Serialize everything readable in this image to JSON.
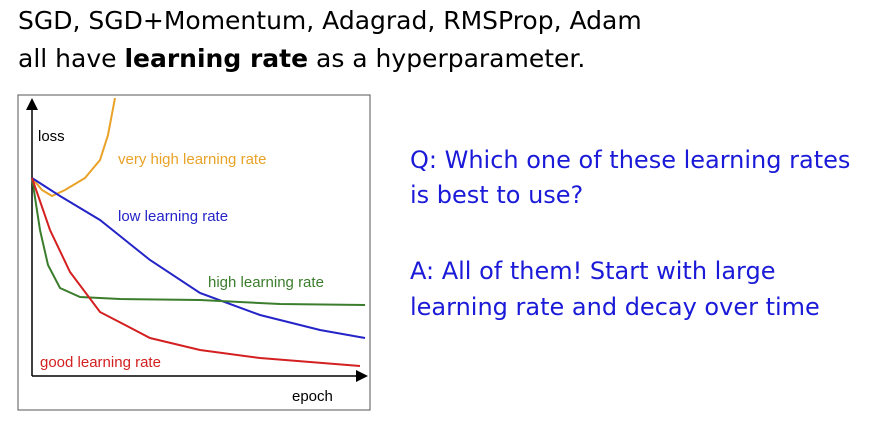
{
  "heading": {
    "line1": "SGD, SGD+Momentum, Adagrad, RMSProp, Adam",
    "line2_start": "all have ",
    "line2_bold": "learning rate",
    "line2_end": " as a hyperparameter."
  },
  "figure": {
    "y_label": "loss",
    "x_label": "epoch",
    "curves": [
      "very high learning rate",
      "low learning rate",
      "high learning rate",
      "good learning rate"
    ]
  },
  "question": [
    "Q: Which one of these learning rates",
    "is best to use?"
  ],
  "answer": [
    "A: All of them! Start with large",
    "learning rate and decay over time"
  ]
}
